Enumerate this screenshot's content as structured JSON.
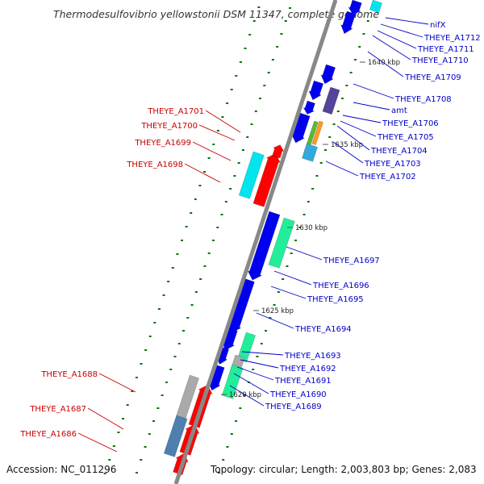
{
  "title": "Thermodesulfovibrio yellowstonii DSM 11347, complete genome",
  "footer": {
    "accession": "Accession: NC_011296",
    "topology": "Topology: circular; Length: 2,003,803 bp; Genes: 2,083"
  },
  "colors": {
    "forward_label": "#0000c8",
    "reverse_label": "#c80000",
    "cds": "#0000ee",
    "reverse_cds": "#ff0000",
    "cyan": "#00e5ee",
    "mint": "#22ee99",
    "gray": "#aaaaaa",
    "steel": "#4f7fb0",
    "purple": "#55449a",
    "orange": "#ff9a22",
    "green": "#55bb33",
    "skyblue": "#33aadd",
    "backbone": "#888888",
    "tick": "#007700"
  },
  "kbp_marks": [
    "1640 kbp",
    "1635 kbp",
    "1630 kbp",
    "1625 kbp",
    "1620 kbp"
  ],
  "forward_labels": [
    "nifX",
    "THEYE_A1712",
    "THEYE_A1711",
    "THEYE_A1710",
    "THEYE_A1709",
    "THEYE_A1708",
    "amt",
    "THEYE_A1706",
    "THEYE_A1705",
    "THEYE_A1704",
    "THEYE_A1703",
    "THEYE_A1702",
    "THEYE_A1697",
    "THEYE_A1696",
    "THEYE_A1695",
    "THEYE_A1694",
    "THEYE_A1693",
    "THEYE_A1692",
    "THEYE_A1691",
    "THEYE_A1690",
    "THEYE_A1689"
  ],
  "reverse_labels": [
    "THEYE_A1701",
    "THEYE_A1700",
    "THEYE_A1699",
    "THEYE_A1698",
    "THEYE_A1688",
    "THEYE_A1687",
    "THEYE_A1686"
  ]
}
